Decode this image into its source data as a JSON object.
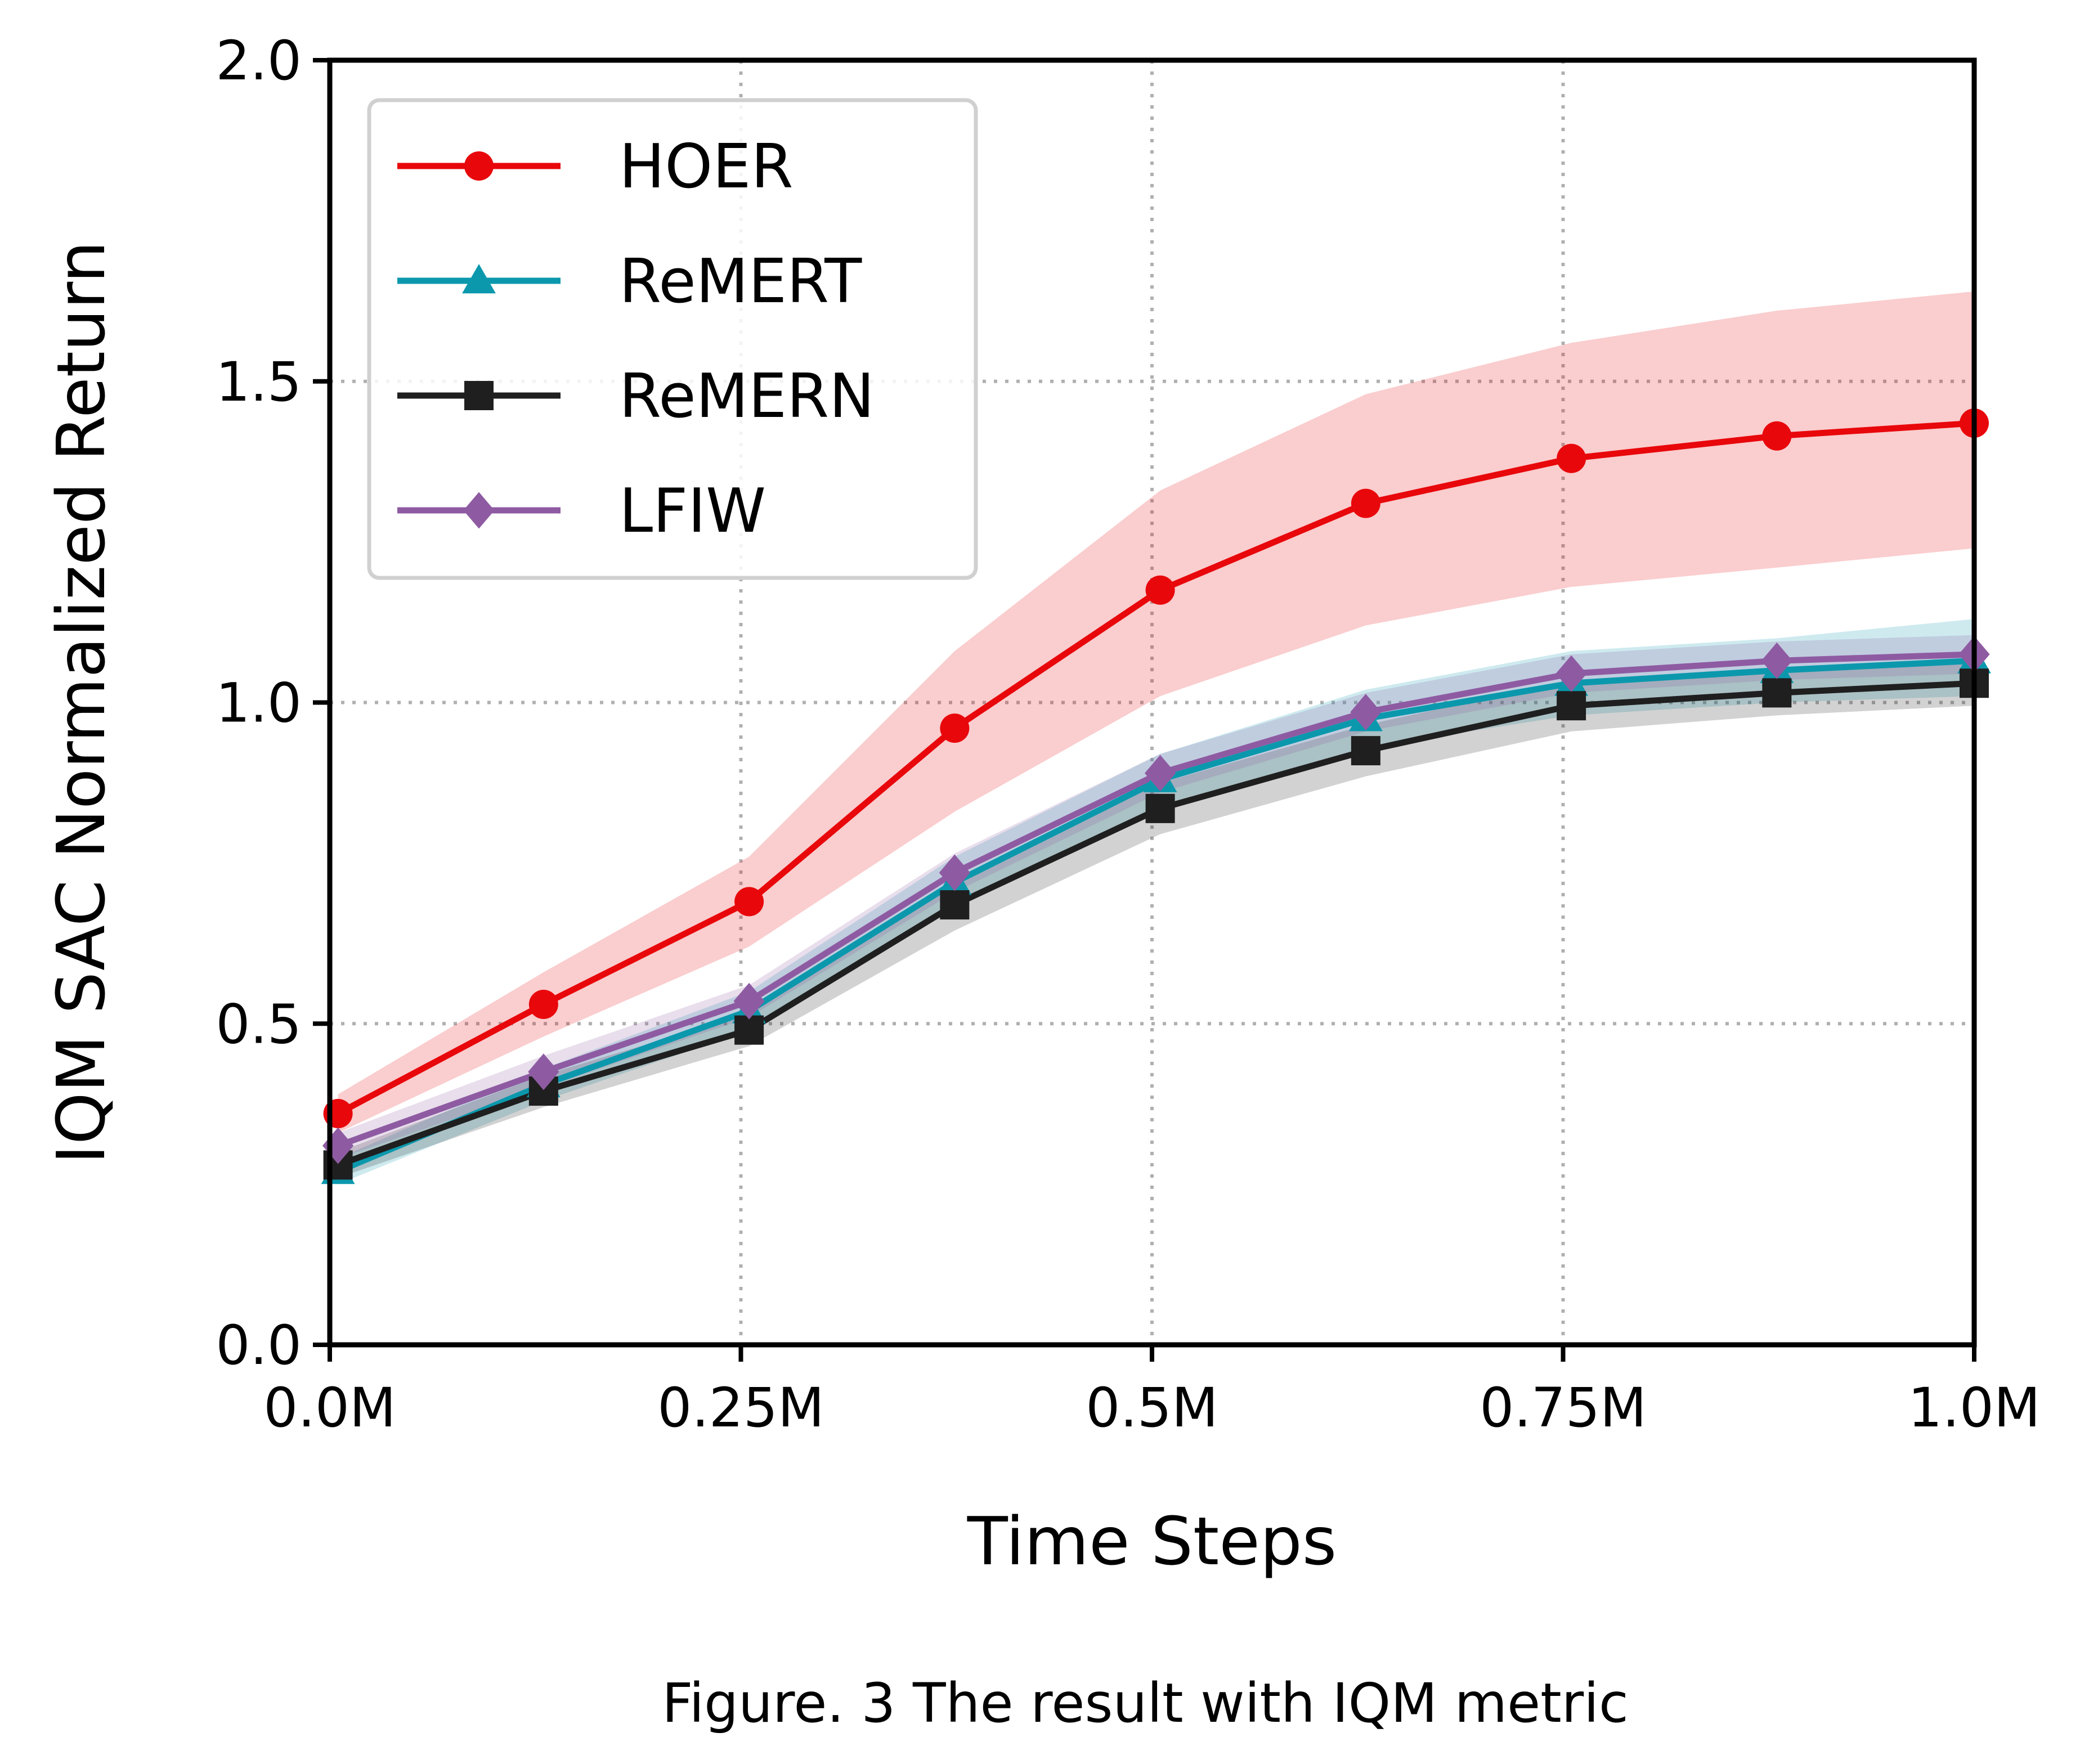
{
  "chart_data": {
    "type": "line",
    "xlabel": "Time Steps",
    "ylabel": "IQM SAC Normalized Return",
    "xlim": [
      0,
      1.0
    ],
    "ylim": [
      0,
      2.0
    ],
    "xticks": [
      0,
      0.25,
      0.5,
      0.75,
      1.0
    ],
    "xtick_labels": [
      "0.0M",
      "0.25M",
      "0.5M",
      "0.75M",
      "1.0M"
    ],
    "yticks": [
      0,
      0.5,
      1.0,
      1.5,
      2.0
    ],
    "ytick_labels": [
      "0.0",
      "0.5",
      "1.0",
      "1.5",
      "2.0"
    ],
    "grid": "dotted at x and y ticks",
    "legend_position": "top-left",
    "x": [
      0.005,
      0.13,
      0.255,
      0.38,
      0.505,
      0.63,
      0.755,
      0.88,
      1.0
    ],
    "series": [
      {
        "name": "HOER",
        "color": "#e8070b",
        "marker": "circle",
        "values": [
          0.36,
          0.53,
          0.69,
          0.96,
          1.175,
          1.31,
          1.38,
          1.415,
          1.435
        ],
        "lower": [
          0.33,
          0.48,
          0.62,
          0.83,
          1.01,
          1.12,
          1.18,
          1.21,
          1.24
        ],
        "upper": [
          0.39,
          0.58,
          0.76,
          1.08,
          1.33,
          1.48,
          1.56,
          1.61,
          1.64
        ]
      },
      {
        "name": "ReMERT",
        "color": "#0b98ad",
        "marker": "triangle",
        "values": [
          0.27,
          0.405,
          0.52,
          0.72,
          0.88,
          0.975,
          1.03,
          1.05,
          1.065
        ],
        "lower": [
          0.25,
          0.38,
          0.49,
          0.68,
          0.84,
          0.93,
          0.98,
          1.0,
          1.01
        ],
        "upper": [
          0.29,
          0.43,
          0.55,
          0.76,
          0.92,
          1.02,
          1.08,
          1.1,
          1.13
        ]
      },
      {
        "name": "ReMERN",
        "color": "#1f1f1f",
        "marker": "square",
        "values": [
          0.28,
          0.395,
          0.49,
          0.685,
          0.835,
          0.925,
          0.995,
          1.015,
          1.03
        ],
        "lower": [
          0.26,
          0.37,
          0.465,
          0.645,
          0.795,
          0.885,
          0.955,
          0.98,
          0.995
        ],
        "upper": [
          0.3,
          0.42,
          0.515,
          0.725,
          0.875,
          0.965,
          1.035,
          1.05,
          1.065
        ]
      },
      {
        "name": "LFIW",
        "color": "#8e5ba2",
        "marker": "diamond",
        "values": [
          0.31,
          0.425,
          0.535,
          0.735,
          0.89,
          0.985,
          1.045,
          1.065,
          1.075
        ],
        "lower": [
          0.29,
          0.4,
          0.51,
          0.705,
          0.86,
          0.955,
          1.015,
          1.035,
          1.045
        ],
        "upper": [
          0.33,
          0.45,
          0.56,
          0.765,
          0.92,
          1.015,
          1.075,
          1.095,
          1.105
        ]
      }
    ]
  },
  "caption": "Figure. 3 The result with IQM metric"
}
